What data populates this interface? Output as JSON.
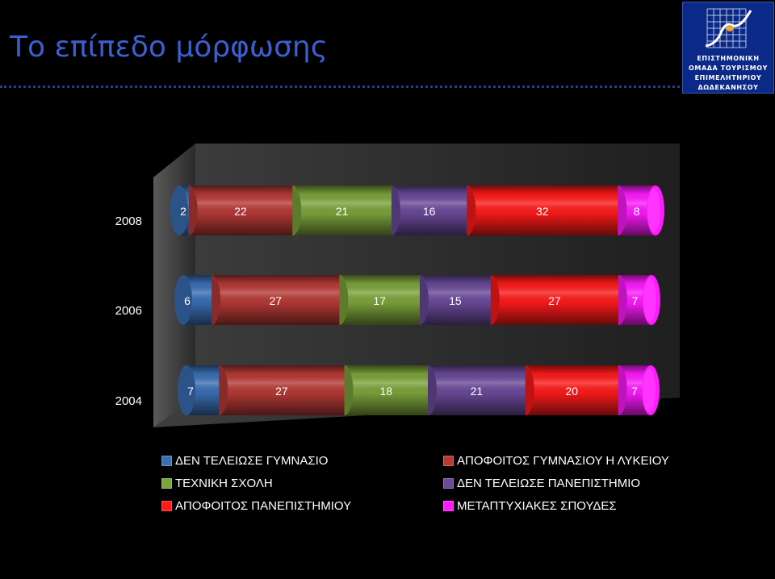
{
  "slide": {
    "title": "Το επίπεδο μόρφωσης"
  },
  "logo": {
    "lines": [
      "ΕΠΙΣΤΗΜΟΝΙΚΗ",
      "ΟΜΑΔΑ ΤΟΥΡΙΣΜΟΥ",
      "ΕΠΙΜΕΛΗΤΗΡΙΟΥ",
      "ΔΩΔΕΚΑΝΗΣΟΥ"
    ]
  },
  "chart_data": {
    "type": "bar",
    "orientation": "horizontal",
    "stacked": true,
    "style": "3d-cylinder",
    "categories": [
      "2008",
      "2006",
      "2004"
    ],
    "series": [
      {
        "name": "ΔΕΝ ΤΕΛΕΙΩΣΕ ΓΥΜΝΑΣΙΟ",
        "color": "#3a6fb5",
        "values": [
          2,
          6,
          7
        ]
      },
      {
        "name": "ΑΠΟΦΟΙΤΟΣ ΓΥΜΝΑΣΙΟΥ Η ΛΥΚΕΙΟΥ",
        "color": "#b73a36",
        "values": [
          22,
          27,
          27
        ]
      },
      {
        "name": "ΤΕΧΝΙΚΗ ΣΧΟΛΗ",
        "color": "#7da43b",
        "values": [
          21,
          17,
          18
        ]
      },
      {
        "name": "ΔΕΝ ΤΕΛΕΙΩΣΕ ΠΑΝΕΠΙΣΤΗΜΙΟ",
        "color": "#6a4a9a",
        "values": [
          16,
          15,
          21
        ]
      },
      {
        "name": "ΑΠΟΦΟΙΤΟΣ ΠΑΝΕΠΙΣΤΗΜΙΟΥ",
        "color": "#ff1a1a",
        "values": [
          32,
          27,
          20
        ]
      },
      {
        "name": "ΜΕΤΑΠΤΥΧΙΑΚΕΣ ΣΠΟΥΔΕΣ",
        "color": "#ff1aff",
        "values": [
          8,
          7,
          7
        ]
      }
    ],
    "legend_position": "bottom",
    "legend_columns": 2,
    "data_labels": true,
    "grid": false
  }
}
